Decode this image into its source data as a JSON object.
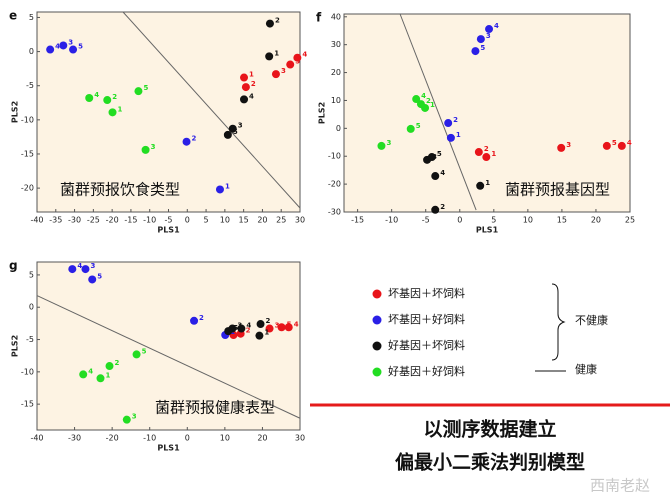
{
  "chart_data": [
    {
      "type": "scatter",
      "panel": "e",
      "title": "菌群预报饮食类型",
      "xlabel": "PLS1",
      "ylabel": "PLS2",
      "xlim": [
        -40,
        30
      ],
      "ylim": [
        -23.5,
        5.8
      ],
      "xticks": [
        -40,
        -35,
        -30,
        -25,
        -20,
        -15,
        -10,
        -5,
        0,
        5,
        10,
        15,
        20,
        25,
        30
      ],
      "yticks": [
        5,
        0,
        -5,
        -10,
        -15,
        -20
      ],
      "series": [
        {
          "color": "#e8141a",
          "point_labels": [
            1,
            2,
            3,
            4,
            5
          ],
          "x": [
            15.1,
            15.6,
            23.6,
            29.3,
            27.4
          ],
          "values": [
            -3.8,
            -5.2,
            -3.3,
            -0.9,
            -1.9
          ]
        },
        {
          "color": "#2a1fe6",
          "point_labels": [
            1,
            2,
            3,
            4,
            5
          ],
          "x": [
            8.7,
            -0.2,
            -33,
            -36.5,
            -30.4
          ],
          "values": [
            -20.2,
            -13.2,
            0.9,
            0.3,
            0.3
          ]
        },
        {
          "color": "#111111",
          "point_labels": [
            1,
            2,
            3,
            4,
            5
          ],
          "x": [
            21.8,
            22,
            12.1,
            15.1,
            10.8
          ],
          "values": [
            -0.7,
            4.1,
            -11.3,
            -7,
            -12.2
          ]
        },
        {
          "color": "#22dd22",
          "point_labels": [
            1,
            2,
            3,
            4,
            5
          ],
          "x": [
            -19.9,
            -21.3,
            -11.1,
            -26.1,
            -13
          ],
          "values": [
            -8.9,
            -7.1,
            -14.4,
            -6.8,
            -5.8
          ]
        }
      ]
    },
    {
      "type": "scatter",
      "panel": "f",
      "title": "菌群预报基因型",
      "xlabel": "PLS1",
      "ylabel": "PLS2",
      "xlim": [
        -17,
        25
      ],
      "ylim": [
        -30,
        41
      ],
      "xticks": [
        -15,
        -10,
        -5,
        0,
        5,
        10,
        15,
        20,
        25
      ],
      "yticks": [
        40,
        30,
        20,
        10,
        0,
        -10,
        -20,
        -30
      ],
      "series": [
        {
          "color": "#e8141a",
          "point_labels": [
            1,
            2,
            3,
            4,
            5
          ],
          "x": [
            3.9,
            2.8,
            14.9,
            23.8,
            21.6
          ],
          "values": [
            -10.3,
            -8.5,
            -7,
            -6.3,
            -6.3
          ]
        },
        {
          "color": "#2a1fe6",
          "point_labels": [
            1,
            2,
            3,
            4,
            5
          ],
          "x": [
            -1.3,
            -1.7,
            3.1,
            4.3,
            2.3
          ],
          "values": [
            -3.4,
            1.9,
            32,
            35.6,
            27.7
          ]
        },
        {
          "color": "#111111",
          "point_labels": [
            1,
            2,
            3,
            4,
            5
          ],
          "x": [
            3,
            -3.6,
            -4.8,
            -3.6,
            -4.1
          ],
          "values": [
            -20.6,
            -29.2,
            -11.3,
            -17.1,
            -10.3
          ]
        },
        {
          "color": "#22dd22",
          "point_labels": [
            1,
            2,
            3,
            4,
            5
          ],
          "x": [
            -5.1,
            -5.7,
            -11.5,
            -6.4,
            -7.2
          ],
          "values": [
            7.3,
            8.7,
            -6.3,
            10.5,
            -0.2
          ]
        }
      ]
    },
    {
      "type": "scatter",
      "panel": "g",
      "title": "菌群预报健康表型",
      "xlabel": "PLS1",
      "ylabel": "PLS2",
      "xlim": [
        -40,
        30
      ],
      "ylim": [
        -19,
        7
      ],
      "xticks": [
        -40,
        -30,
        -20,
        -10,
        0,
        10,
        20,
        30
      ],
      "yticks": [
        5,
        0,
        -5,
        -10,
        -15
      ],
      "series": [
        {
          "color": "#e8141a",
          "point_labels": [
            1,
            2,
            3,
            4,
            5
          ],
          "x": [
            12.3,
            14.2,
            21.9,
            27,
            25.1
          ],
          "values": [
            -4.3,
            -4.1,
            -3.3,
            -3.1,
            -3.1
          ]
        },
        {
          "color": "#2a1fe6",
          "point_labels": [
            1,
            2,
            3,
            4,
            5
          ],
          "x": [
            10.1,
            1.8,
            -27.1,
            -30.6,
            -25.3
          ],
          "values": [
            -4.3,
            -2.1,
            5.9,
            5.9,
            4.3
          ]
        },
        {
          "color": "#111111",
          "point_labels": [
            1,
            2,
            3,
            4,
            5
          ],
          "x": [
            19.2,
            19.5,
            12,
            14.4,
            10.9
          ],
          "values": [
            -4.4,
            -2.6,
            -3.3,
            -3.3,
            -3.7
          ]
        },
        {
          "color": "#22dd22",
          "point_labels": [
            1,
            2,
            3,
            4,
            5
          ],
          "x": [
            -23.1,
            -20.7,
            -16.1,
            -27.7,
            -13.5
          ],
          "values": [
            -11,
            -9.1,
            -17.4,
            -10.4,
            -7.3
          ]
        }
      ]
    }
  ],
  "legend": {
    "items": [
      {
        "label": "坏基因＋坏饲料",
        "color": "#e8141a"
      },
      {
        "label": "坏基因＋好饲料",
        "color": "#2a1fe6"
      },
      {
        "label": "好基因＋坏饲料",
        "color": "#111111"
      },
      {
        "label": "好基因＋好饲料",
        "color": "#22dd22"
      }
    ],
    "brace_label": "不健康",
    "line_label": "健康"
  },
  "caption": {
    "line1": "以测序数据建立",
    "line2": "偏最小二乘法判别模型"
  },
  "watermark": "西南老赵"
}
